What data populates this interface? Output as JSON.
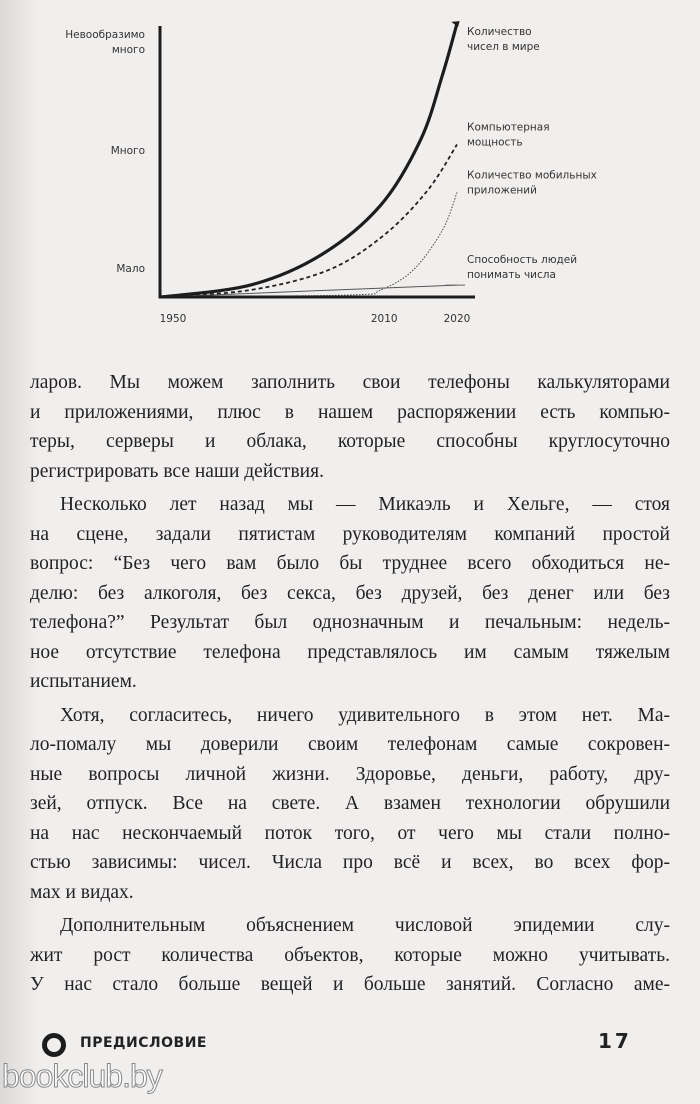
{
  "chart_data": {
    "type": "line",
    "title": "",
    "xlabel": "",
    "ylabel": "",
    "x_ticks": [
      1950,
      2010,
      2020
    ],
    "y_ticks": [
      {
        "level": 1,
        "label": "Мало"
      },
      {
        "level": 2,
        "label": "Много"
      },
      {
        "level": 3,
        "label": "Невообразимо много"
      }
    ],
    "y_units": "qualitative levels (0 = origin, 1 = Мало, 2 = Много, 3 = Невообразимо много)",
    "series": [
      {
        "name": "Количество чисел в мире",
        "style": "thick-arrow",
        "points": [
          [
            1950,
            0
          ],
          [
            1974,
            0.41
          ],
          [
            1993,
            1.11
          ],
          [
            2009,
            1.53
          ],
          [
            2015,
            2.09
          ],
          [
            2018,
            2.68
          ],
          [
            2020,
            3.15
          ]
        ]
      },
      {
        "name": "Компьютерная мощность",
        "style": "dashed",
        "points": [
          [
            1950,
            0
          ],
          [
            1974,
            0.24
          ],
          [
            1995,
            0.93
          ],
          [
            2010,
            1.28
          ],
          [
            2016,
            1.66
          ],
          [
            2020,
            2.05
          ]
        ]
      },
      {
        "name": "Количество мобильных приложений",
        "style": "dotted",
        "points": [
          [
            1950,
            0
          ],
          [
            2001,
            0.07
          ],
          [
            2009,
            0.24
          ],
          [
            2014,
            0.93
          ],
          [
            2018,
            1.32
          ],
          [
            2020,
            1.64
          ]
        ]
      },
      {
        "name": "Способность людей понимать числа",
        "style": "thin",
        "points": [
          [
            1950,
            0
          ],
          [
            2020,
            0.41
          ]
        ]
      }
    ],
    "series_label_lines": [
      [
        "Количество",
        "чисел в мире"
      ],
      [
        "Компьютерная",
        "мощность"
      ],
      [
        "Количество мобильных",
        "приложений"
      ],
      [
        "Способность людей",
        "понимать числа"
      ]
    ],
    "y_tick_label_lines": [
      [
        "Мало"
      ],
      [
        "Много"
      ],
      [
        "Невообразимо",
        "много"
      ]
    ],
    "grid": false,
    "legend": "inline-right"
  },
  "body": {
    "paragraphs": [
      {
        "indent": false,
        "lines": [
          "ларов. Мы можем заполнить свои телефоны калькуляторами",
          "и приложениями, плюс в нашем распоряжении есть компью-",
          "теры, серверы и облака, которые способны круглосуточно",
          "регистрировать все наши действия."
        ]
      },
      {
        "indent": true,
        "lines": [
          "Несколько лет назад мы — Микаэль и Хельге, — стоя",
          "на сцене, задали пятистам руководителям компаний простой",
          "вопрос: “Без чего вам было бы труднее всего обходиться не-",
          "делю: без алкоголя, без секса, без друзей, без денег или без",
          "телефона?” Результат был однозначным и печальным: недель-",
          "ное отсутствие телефона представлялось им самым тяжелым",
          "испытанием."
        ]
      },
      {
        "indent": true,
        "lines": [
          "Хотя, согласитесь, ничего удивительного в этом нет. Ма-",
          "ло-помалу мы доверили своим телефонам самые сокровен-",
          "ные вопросы личной жизни. Здоровье, деньги, работу, дру-",
          "зей, отпуск. Все на свете. А взамен технологии обрушили",
          "на нас нескончаемый поток того, от чего мы стали полно-",
          "стью зависимы: чисел. Числа про всё и всех, во всех фор-",
          "мах и видах."
        ]
      },
      {
        "indent": true,
        "continues": true,
        "lines": [
          "Дополнительным объяснением числовой эпидемии слу-",
          "жит рост количества объектов, которые можно учитывать.",
          "У нас стало больше вещей и больше занятий. Согласно аме-"
        ]
      }
    ]
  },
  "footer": {
    "section_title": "ПРЕДИСЛОВИЕ",
    "page_number": "17",
    "watermark": "bookclub.by"
  },
  "colors": {
    "paper": "#f1efee",
    "ink": "#232223"
  }
}
